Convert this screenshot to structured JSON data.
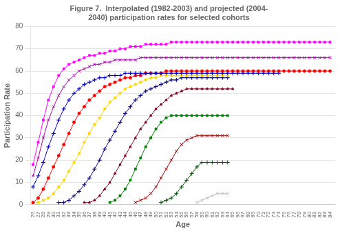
{
  "chart_data": {
    "type": "line",
    "title": [
      "Figure 7.  Interpolated (1982-2003) and projected (2004-",
      "2040) participation rates for selected cohorts"
    ],
    "x_label": "Age",
    "y_label": "Participation Rate",
    "xlim": [
      25.5,
      85
    ],
    "ylim": [
      0,
      80
    ],
    "xticks": [
      26,
      27,
      28,
      29,
      30,
      31,
      32,
      33,
      34,
      35,
      36,
      37,
      38,
      39,
      40,
      41,
      42,
      43,
      44,
      45,
      46,
      47,
      48,
      49,
      50,
      51,
      52,
      53,
      54,
      55,
      56,
      57,
      58,
      59,
      60,
      61,
      62,
      63,
      64,
      65,
      66,
      67,
      68,
      69,
      70,
      71,
      72,
      73,
      74,
      75,
      76,
      77,
      78,
      79,
      80,
      81,
      82,
      83,
      84
    ],
    "yticks": [
      0,
      10,
      20,
      30,
      40,
      50,
      60,
      70,
      80
    ],
    "grid": "y",
    "x": [
      26,
      27,
      28,
      29,
      30,
      31,
      32,
      33,
      34,
      35,
      36,
      37,
      38,
      39,
      40,
      41,
      42,
      43,
      44,
      45,
      46,
      47,
      48,
      49,
      50,
      51,
      52,
      53,
      54,
      55,
      56,
      57,
      58,
      59,
      60,
      61,
      62,
      63,
      64,
      65,
      66,
      67,
      68,
      69,
      70,
      71,
      72,
      73,
      74,
      75,
      76,
      77,
      78,
      79,
      80,
      81,
      82,
      83,
      84
    ],
    "series": [
      {
        "color": "#FF00FF",
        "marker": "square",
        "values": [
          18,
          28,
          38,
          47,
          53,
          58,
          61,
          63,
          64,
          65,
          66,
          67,
          67,
          68,
          68,
          69,
          69,
          70,
          70,
          71,
          71,
          71,
          72,
          72,
          72,
          72,
          72,
          73,
          73,
          73,
          73,
          73,
          73,
          73,
          73,
          73,
          73,
          73,
          73,
          73,
          73,
          73,
          73,
          73,
          73,
          73,
          73,
          73,
          73,
          73,
          73,
          73,
          73,
          73,
          73,
          73,
          73,
          73,
          73
        ]
      },
      {
        "color": "#AA00AA",
        "marker": "x",
        "values": [
          13,
          21,
          30,
          38,
          44,
          49,
          53,
          56,
          58,
          60,
          61,
          62,
          63,
          63,
          64,
          64,
          65,
          65,
          65,
          65,
          65,
          66,
          66,
          66,
          66,
          66,
          66,
          66,
          66,
          66,
          66,
          66,
          66,
          66,
          66,
          66,
          66,
          66,
          66,
          66,
          66,
          66,
          66,
          66,
          66,
          66,
          66,
          66,
          66,
          66,
          66,
          66,
          66,
          66,
          66,
          66,
          66,
          66,
          66
        ]
      },
      {
        "color": "#0000CC",
        "marker": "plus",
        "values": [
          8,
          13,
          19,
          26,
          32,
          38,
          43,
          47,
          50,
          52,
          54,
          55,
          56,
          57,
          57,
          58,
          58,
          58,
          59,
          59,
          59,
          59,
          59,
          59,
          59,
          59,
          59,
          59,
          59,
          59,
          59,
          59,
          59,
          59,
          59,
          59,
          59,
          59,
          59,
          59,
          59,
          59,
          59,
          59,
          59,
          59,
          59,
          59,
          59,
          null,
          null,
          null,
          null,
          null,
          null,
          null,
          null,
          null,
          null
        ]
      },
      {
        "color": "#FF0000",
        "marker": "circle",
        "values": [
          1,
          3,
          7,
          12,
          17,
          22,
          27,
          32,
          37,
          41,
          44,
          47,
          49,
          51,
          53,
          54,
          55,
          56,
          57,
          57,
          58,
          58,
          59,
          59,
          59,
          59,
          60,
          60,
          60,
          60,
          60,
          60,
          60,
          60,
          60,
          60,
          60,
          60,
          60,
          60,
          60,
          60,
          60,
          60,
          60,
          60,
          60,
          60,
          60,
          60,
          60,
          60,
          60,
          60,
          60,
          60,
          60,
          60,
          60
        ]
      },
      {
        "color": "#FFD700",
        "marker": "square",
        "values": [
          1,
          1,
          2,
          3,
          5,
          8,
          11,
          15,
          19,
          23,
          28,
          32,
          36,
          39,
          43,
          46,
          48,
          50,
          52,
          53,
          54,
          55,
          56,
          57,
          57,
          58,
          58,
          58,
          58,
          58,
          58,
          58,
          58,
          58,
          58,
          58,
          58,
          58,
          58,
          null,
          null,
          null,
          null,
          null,
          null,
          null,
          null,
          null,
          null,
          null,
          null,
          null,
          null,
          null,
          null,
          null,
          null,
          null,
          null
        ]
      },
      {
        "color": "#000080",
        "marker": "plus",
        "values": [
          null,
          null,
          null,
          null,
          null,
          1,
          1,
          2,
          4,
          6,
          9,
          12,
          16,
          20,
          25,
          29,
          33,
          37,
          41,
          44,
          47,
          49,
          51,
          52,
          53,
          54,
          55,
          56,
          56,
          57,
          57,
          57,
          57,
          57,
          57,
          57,
          57,
          57,
          57,
          null,
          null,
          null,
          null,
          null,
          null,
          null,
          null,
          null,
          null,
          null,
          null,
          null,
          null,
          null,
          null,
          null,
          null,
          null,
          null
        ]
      },
      {
        "color": "#800020",
        "marker": "triangle",
        "values": [
          null,
          null,
          null,
          null,
          null,
          null,
          null,
          null,
          null,
          null,
          1,
          1,
          2,
          4,
          7,
          10,
          14,
          18,
          22,
          26,
          30,
          34,
          37,
          40,
          43,
          45,
          47,
          49,
          50,
          51,
          52,
          52,
          52,
          52,
          52,
          52,
          52,
          52,
          52,
          52,
          null,
          null,
          null,
          null,
          null,
          null,
          null,
          null,
          null,
          null,
          null,
          null,
          null,
          null,
          null,
          null,
          null,
          null,
          null
        ]
      },
      {
        "color": "#008000",
        "marker": "square",
        "values": [
          null,
          null,
          null,
          null,
          null,
          null,
          null,
          null,
          null,
          null,
          null,
          null,
          null,
          null,
          null,
          1,
          2,
          4,
          7,
          11,
          16,
          21,
          26,
          30,
          34,
          37,
          39,
          40,
          40,
          40,
          40,
          40,
          40,
          40,
          40,
          40,
          40,
          40,
          40,
          null,
          null,
          null,
          null,
          null,
          null,
          null,
          null,
          null,
          null,
          null,
          null,
          null,
          null,
          null,
          null,
          null,
          null,
          null,
          null
        ]
      },
      {
        "color": "#990000",
        "marker": "x",
        "values": [
          null,
          null,
          null,
          null,
          null,
          null,
          null,
          null,
          null,
          null,
          null,
          null,
          null,
          null,
          null,
          null,
          null,
          null,
          null,
          null,
          1,
          2,
          3,
          5,
          8,
          12,
          16,
          20,
          24,
          27,
          29,
          30,
          31,
          31,
          31,
          31,
          31,
          31,
          31,
          null,
          null,
          null,
          null,
          null,
          null,
          null,
          null,
          null,
          null,
          null,
          null,
          null,
          null,
          null,
          null,
          null,
          null,
          null,
          null
        ]
      },
      {
        "color": "#005500",
        "marker": "plus",
        "values": [
          null,
          null,
          null,
          null,
          null,
          null,
          null,
          null,
          null,
          null,
          null,
          null,
          null,
          null,
          null,
          null,
          null,
          null,
          null,
          null,
          null,
          null,
          null,
          null,
          null,
          1,
          2,
          3,
          5,
          8,
          11,
          14,
          17,
          19,
          19,
          19,
          19,
          19,
          19,
          null,
          null,
          null,
          null,
          null,
          null,
          null,
          null,
          null,
          null,
          null,
          null,
          null,
          null,
          null,
          null,
          null,
          null,
          null,
          null
        ]
      },
      {
        "color": "#BBBBCC",
        "marker": "x",
        "values": [
          null,
          null,
          null,
          null,
          null,
          null,
          null,
          null,
          null,
          null,
          null,
          null,
          null,
          null,
          null,
          null,
          null,
          null,
          null,
          null,
          null,
          null,
          null,
          null,
          null,
          null,
          null,
          null,
          null,
          null,
          null,
          null,
          1,
          2,
          3,
          4,
          5,
          5,
          5,
          null,
          null,
          null,
          null,
          null,
          null,
          null,
          null,
          null,
          null,
          null,
          null,
          null,
          null,
          null,
          null,
          null,
          null,
          null,
          null
        ]
      }
    ]
  }
}
